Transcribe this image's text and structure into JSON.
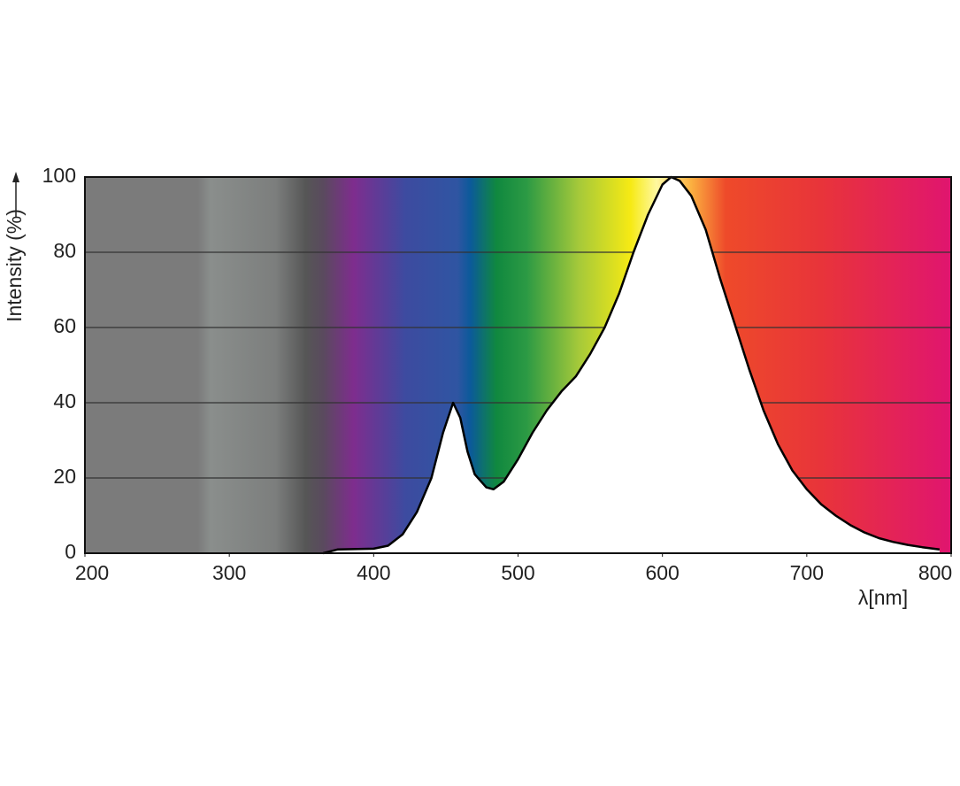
{
  "chart_data": {
    "type": "area",
    "y_label": "Intensity (%)",
    "x_label": "λ[nm]",
    "x": [
      365,
      375,
      400,
      410,
      420,
      430,
      440,
      448,
      455,
      460,
      465,
      470,
      478,
      483,
      490,
      500,
      510,
      520,
      530,
      540,
      550,
      560,
      570,
      580,
      590,
      600,
      606,
      612,
      620,
      630,
      640,
      650,
      660,
      670,
      680,
      690,
      700,
      710,
      720,
      730,
      740,
      750,
      760,
      770,
      780,
      792
    ],
    "values": [
      0,
      1,
      1.2,
      2,
      5,
      11,
      20,
      32,
      40,
      36,
      27,
      21,
      17.5,
      17,
      19,
      25,
      32,
      38,
      43,
      47,
      53,
      60,
      69,
      80,
      90,
      98,
      100,
      99,
      95,
      86,
      73,
      61,
      49,
      38,
      29,
      22,
      17,
      13,
      10,
      7.5,
      5.5,
      4,
      3,
      2.2,
      1.6,
      1
    ],
    "color": "#000000",
    "xlim": [
      200,
      800
    ],
    "xticks": [
      200,
      300,
      400,
      500,
      600,
      700,
      800
    ],
    "ylim": [
      0,
      100
    ],
    "yticks": [
      0,
      20,
      40,
      60,
      80,
      100
    ],
    "grid": true
  }
}
